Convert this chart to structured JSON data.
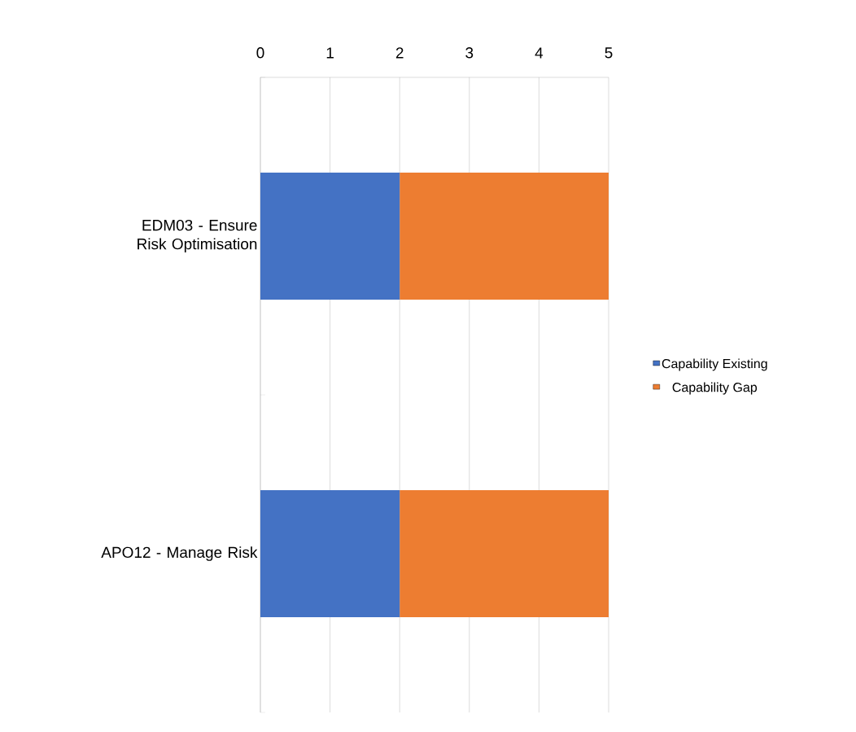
{
  "chart_data": {
    "type": "bar",
    "orientation": "horizontal",
    "stacked": true,
    "categories": [
      "EDM03 - Ensure Risk Optimisation",
      "APO12 - Manage Risk"
    ],
    "series": [
      {
        "name": "Capability Existing",
        "color": "#4472c4",
        "values": [
          2,
          2
        ]
      },
      {
        "name": "Capability Gap",
        "color": "#ed7d31",
        "values": [
          3,
          3
        ]
      }
    ],
    "xlim": [
      0,
      5
    ],
    "xticks": [
      0,
      1,
      2,
      3,
      4,
      5
    ],
    "grid": "x",
    "legend": "right"
  }
}
